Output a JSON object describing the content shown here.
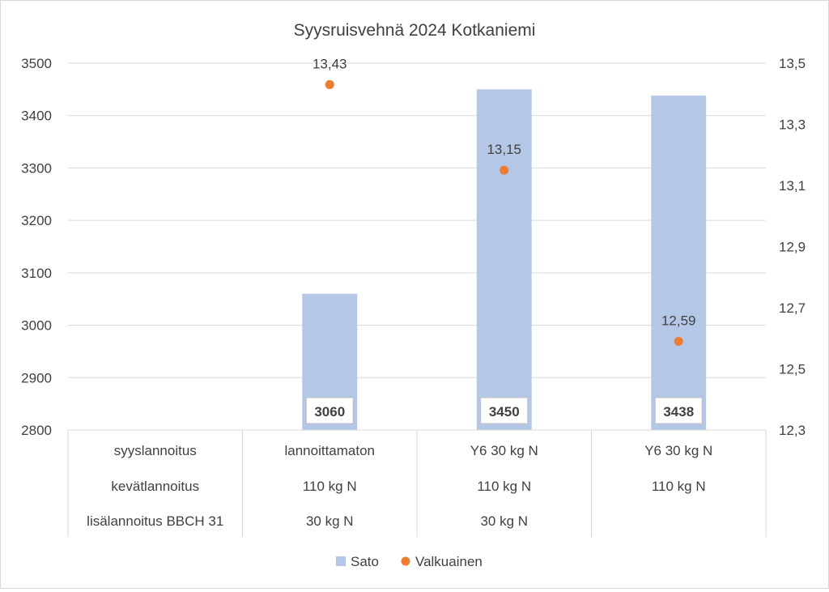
{
  "chart_data": {
    "type": "bar",
    "title": "Syysruisvehnä 2024 Kotkaniemi",
    "categories": [
      "",
      "lannoittamaton",
      "Y6 30 kg N",
      "Y6 30 kg N"
    ],
    "category_table": {
      "row_labels": [
        "syyslannoitus",
        "kevätlannoitus",
        "lisälannoitus BBCH 31"
      ],
      "rows": [
        [
          "",
          "lannoittamaton",
          "Y6 30 kg N",
          "Y6 30 kg N"
        ],
        [
          "",
          "110 kg N",
          "110 kg N",
          "110 kg N"
        ],
        [
          "",
          "30 kg N",
          "30 kg N",
          ""
        ]
      ]
    },
    "series": [
      {
        "name": "Sato",
        "type": "bar",
        "axis": "left",
        "color": "#b4c7e7",
        "values": [
          null,
          3060,
          3450,
          3438
        ],
        "labels": [
          "",
          "3060",
          "3450",
          "3438"
        ]
      },
      {
        "name": "Valkuainen",
        "type": "scatter",
        "axis": "right",
        "color": "#ed7d31",
        "values": [
          null,
          13.43,
          13.15,
          12.59
        ],
        "labels": [
          "",
          "13,43",
          "13,15",
          "12,59"
        ]
      }
    ],
    "y_left": {
      "min": 2800,
      "max": 3500,
      "ticks": [
        2800,
        2900,
        3000,
        3100,
        3200,
        3300,
        3400,
        3500
      ],
      "tick_labels": [
        "2800",
        "2900",
        "3000",
        "3100",
        "3200",
        "3300",
        "3400",
        "3500"
      ]
    },
    "y_right": {
      "min": 12.3,
      "max": 13.5,
      "ticks": [
        12.3,
        12.5,
        12.7,
        12.9,
        13.1,
        13.3,
        13.5
      ],
      "tick_labels": [
        "12,3",
        "12,5",
        "12,7",
        "12,9",
        "13,1",
        "13,3",
        "13,5"
      ]
    },
    "xlabel": "",
    "ylabel": "",
    "grid": true,
    "legend": "bottom"
  }
}
